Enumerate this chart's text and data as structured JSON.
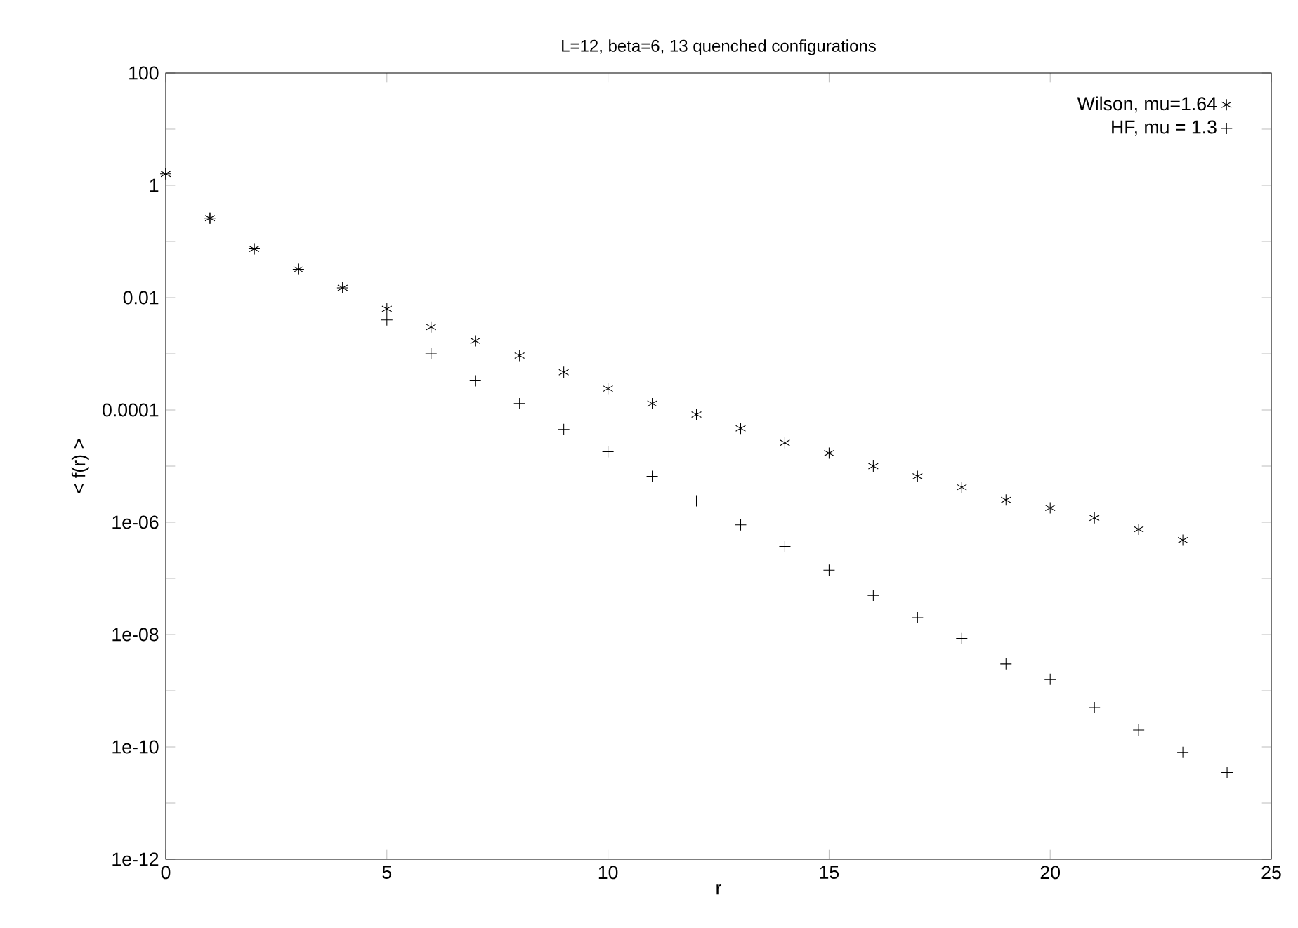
{
  "chart_data": {
    "type": "scatter",
    "title": "L=12,  beta=6,  13 quenched configurations",
    "xlabel": "r",
    "ylabel": "< f(r) >",
    "log": "y",
    "legend": "top right",
    "xlim": [
      0,
      25
    ],
    "xticks": [
      0,
      5,
      10,
      15,
      20,
      25
    ],
    "ylim": [
      1e-12,
      100
    ],
    "yticks": [
      100,
      {
        "value": 10,
        "label": null
      },
      1,
      {
        "value": 0.1,
        "label": null
      },
      0.01,
      {
        "value": 0.001,
        "label": null
      },
      0.0001,
      {
        "value": 1e-05,
        "label": null
      },
      {
        "value": 1e-06,
        "label": "1e-06"
      },
      {
        "value": 1e-07,
        "label": null
      },
      {
        "value": 1e-08,
        "label": "1e-08"
      },
      {
        "value": 1e-09,
        "label": null
      },
      {
        "value": 1e-10,
        "label": "1e-10"
      },
      {
        "value": 1e-11,
        "label": null
      },
      {
        "value": 1e-12,
        "label": "1e-12"
      }
    ],
    "series": [
      {
        "name": "Wilson, mu=1.64",
        "color": "#000000",
        "marker": "cross",
        "x": [
          0,
          1,
          2,
          3,
          4,
          5,
          6,
          7,
          8,
          9,
          10,
          11,
          12,
          13,
          14,
          15,
          16,
          17,
          18,
          19,
          20,
          21,
          22,
          23
        ],
        "values": [
          1.6,
          0.26,
          0.074,
          0.032,
          0.015,
          0.0063,
          0.003,
          0.0017,
          0.00093,
          0.00047,
          0.00024,
          0.00013,
          8.3e-05,
          4.7e-05,
          2.6e-05,
          1.7e-05,
          1e-05,
          6.6e-06,
          4.2e-06,
          2.5e-06,
          1.8e-06,
          1.2e-06,
          7.5e-07,
          4.8e-07
        ]
      },
      {
        "name": "HF, mu = 1.3",
        "color": "#000000",
        "x": [
          0,
          1,
          2,
          3,
          4,
          5,
          6,
          7,
          8,
          9,
          10,
          11,
          12,
          13,
          14,
          15,
          16,
          17,
          18,
          19,
          20,
          21,
          22,
          23,
          24
        ],
        "values": [
          1.6,
          0.26,
          0.074,
          0.032,
          0.015,
          0.004,
          0.001,
          0.00033,
          0.00013,
          4.5e-05,
          1.8e-05,
          6.6e-06,
          2.4e-06,
          9e-07,
          3.7e-07,
          1.4e-07,
          5e-08,
          2e-08,
          8.5e-09,
          3e-09,
          1.6e-09,
          5e-10,
          2e-10,
          8e-11,
          3.5e-11
        ]
      }
    ]
  }
}
